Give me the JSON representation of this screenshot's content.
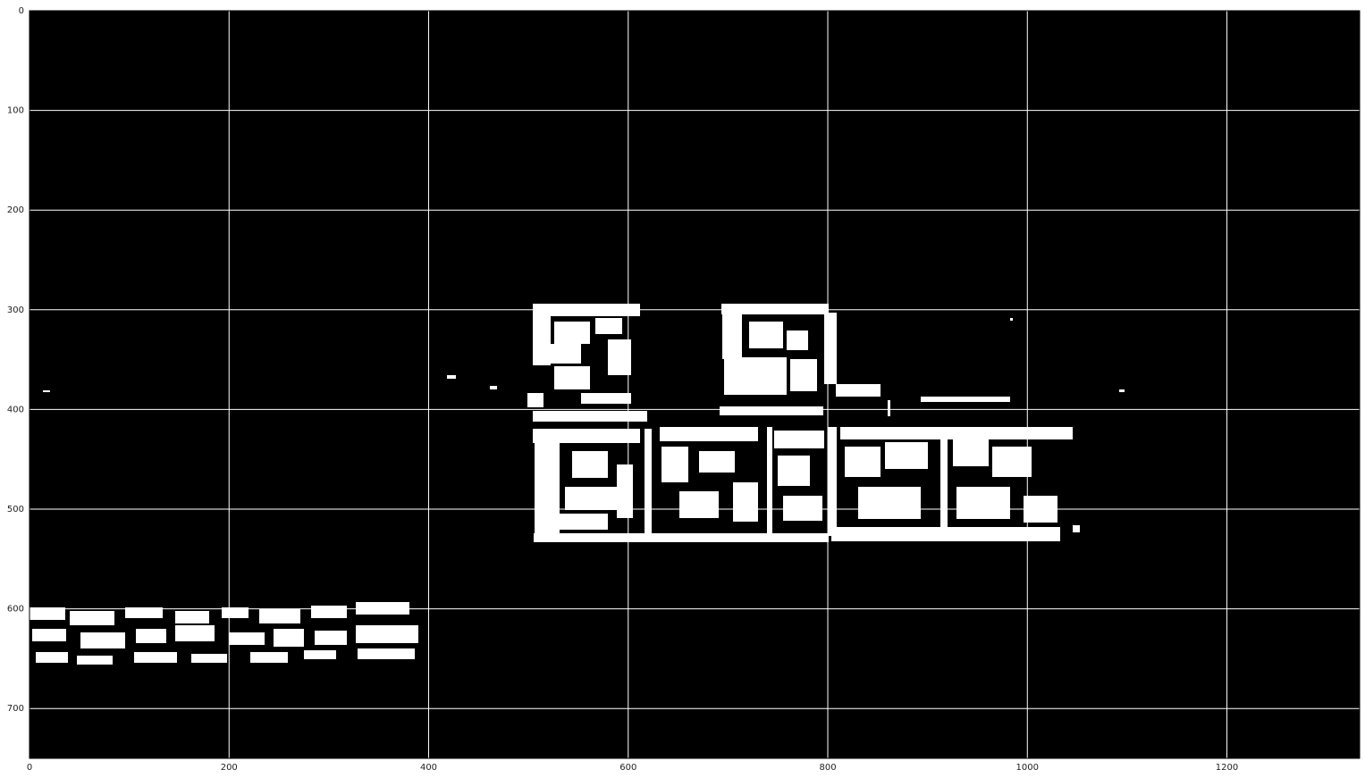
{
  "image": {
    "background_color": "#000000",
    "blob_color": "#ffffff",
    "grid_color": "#ffffff",
    "grid": true,
    "x_range": [
      0,
      1333
    ],
    "y_range": [
      0,
      750
    ],
    "y_axis_inverted": true
  },
  "axes": {
    "x_ticks": [
      "0",
      "200",
      "400",
      "600",
      "800",
      "1000",
      "1200"
    ],
    "y_ticks": [
      "0",
      "100",
      "200",
      "300",
      "400",
      "500",
      "600",
      "700"
    ]
  }
}
